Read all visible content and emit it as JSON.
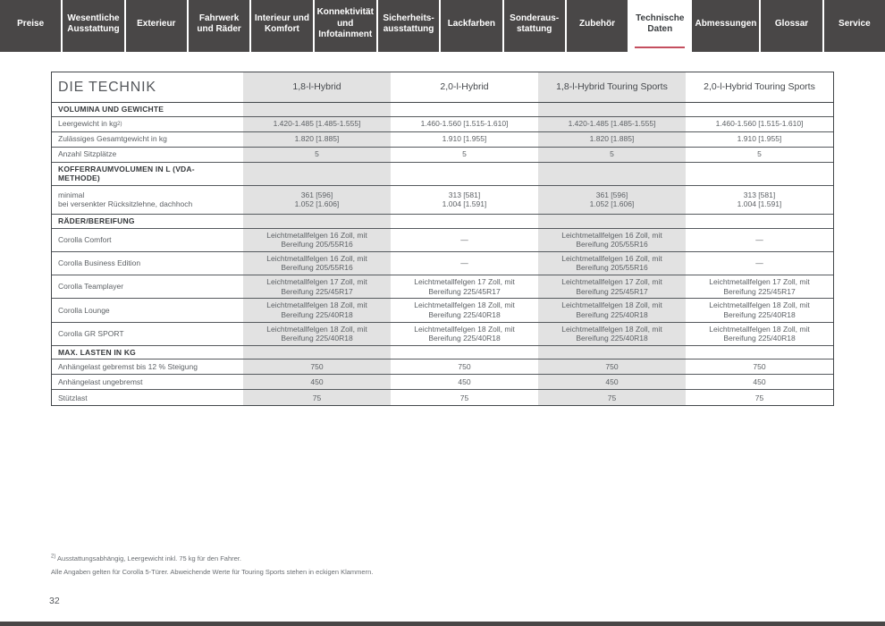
{
  "colors": {
    "accent_red": "#c44f5f",
    "tab_bg": "#494747",
    "band_gray": "#e2e2e2"
  },
  "nav": {
    "tabs": [
      {
        "label": "Preise",
        "active": false
      },
      {
        "label": "Wesentliche Ausstattung",
        "active": false
      },
      {
        "label": "Exterieur",
        "active": false
      },
      {
        "label": "Fahrwerk und Räder",
        "active": false
      },
      {
        "label": "Interieur und Komfort",
        "active": false
      },
      {
        "label": "Konnektivität und Infotainment",
        "active": false
      },
      {
        "label": "Sicherheits­ausstattung",
        "active": false
      },
      {
        "label": "Lackfarben",
        "active": false
      },
      {
        "label": "Sonderaus­stattung",
        "active": false
      },
      {
        "label": "Zubehör",
        "active": false
      },
      {
        "label": "Technische Daten",
        "active": true
      },
      {
        "label": "Abmessungen",
        "active": false
      },
      {
        "label": "Glossar",
        "active": false
      },
      {
        "label": "Service",
        "active": false
      }
    ]
  },
  "table": {
    "title": "DIE TECHNIK",
    "columns": [
      "1,8-l-Hybrid",
      "2,0-l-Hybrid",
      "1,8-l-Hybrid Touring Sports",
      "2,0-l-Hybrid Touring Sports"
    ],
    "rows": [
      {
        "type": "section",
        "label": "VOLUMINA UND GEWICHTE"
      },
      {
        "type": "data",
        "size": "single",
        "label": "Leergewicht in kg",
        "sup": "2)",
        "values": [
          "1.420-1.485 [1.485-1.555]",
          "1.460-1.560 [1.515-1.610]",
          "1.420-1.485 [1.485-1.555]",
          "1.460-1.560 [1.515-1.610]"
        ]
      },
      {
        "type": "data",
        "size": "single",
        "label": "Zulässiges Gesamtgewicht in kg",
        "values": [
          "1.820 [1.885]",
          "1.910 [1.955]",
          "1.820 [1.885]",
          "1.910 [1.955]"
        ]
      },
      {
        "type": "data",
        "size": "single",
        "label": "Anzahl Sitzplätze",
        "values": [
          "5",
          "5",
          "5",
          "5"
        ]
      },
      {
        "type": "section",
        "label": "KOFFERRAUMVOLUMEN IN L (VDA-METHODE)"
      },
      {
        "type": "data",
        "size": "double",
        "label": "minimal\nbei versenkter Rücksitzlehne, dachhoch",
        "values": [
          "361 [596]\n1.052 [1.606]",
          "313 [581]\n1.004 [1.591]",
          "361 [596]\n1.052 [1.606]",
          "313 [581]\n1.004 [1.591]"
        ]
      },
      {
        "type": "section",
        "label": "RÄDER/BEREIFUNG"
      },
      {
        "type": "data",
        "size": "wheel",
        "label": "Corolla Comfort",
        "values": [
          "Leichtmetallfelgen 16 Zoll, mit Bereifung 205/55R16",
          "—",
          "Leichtmetallfelgen 16 Zoll, mit Bereifung 205/55R16",
          "—"
        ]
      },
      {
        "type": "data",
        "size": "wheel",
        "label": "Corolla Business Edition",
        "values": [
          "Leichtmetallfelgen 16 Zoll, mit Bereifung 205/55R16",
          "—",
          "Leichtmetallfelgen 16 Zoll, mit Bereifung 205/55R16",
          "—"
        ]
      },
      {
        "type": "data",
        "size": "wheel",
        "label": "Corolla Teamplayer",
        "values": [
          "Leichtmetallfelgen 17 Zoll, mit Bereifung 225/45R17",
          "Leichtmetallfelgen 17 Zoll, mit Bereifung 225/45R17",
          "Leichtmetallfelgen 17 Zoll, mit Bereifung 225/45R17",
          "Leichtmetallfelgen 17 Zoll, mit Bereifung 225/45R17"
        ]
      },
      {
        "type": "data",
        "size": "wheel",
        "label": "Corolla Lounge",
        "values": [
          "Leichtmetallfelgen 18 Zoll, mit Bereifung 225/40R18",
          "Leichtmetallfelgen 18 Zoll, mit Bereifung 225/40R18",
          "Leichtmetallfelgen 18 Zoll, mit Bereifung 225/40R18",
          "Leichtmetallfelgen 18 Zoll, mit Bereifung 225/40R18"
        ]
      },
      {
        "type": "data",
        "size": "wheel",
        "label": "Corolla GR SPORT",
        "values": [
          "Leichtmetallfelgen 18 Zoll, mit Bereifung 225/40R18",
          "Leichtmetallfelgen 18 Zoll, mit Bereifung 225/40R18",
          "Leichtmetallfelgen 18 Zoll, mit Bereifung 225/40R18",
          "Leichtmetallfelgen 18 Zoll, mit Bereifung 225/40R18"
        ]
      },
      {
        "type": "section",
        "label": "MAX. LASTEN IN KG"
      },
      {
        "type": "data",
        "size": "single",
        "label": "Anhängelast gebremst bis 12 % Steigung",
        "values": [
          "750",
          "750",
          "750",
          "750"
        ]
      },
      {
        "type": "data",
        "size": "single",
        "label": "Anhängelast ungebremst",
        "values": [
          "450",
          "450",
          "450",
          "450"
        ]
      },
      {
        "type": "data",
        "size": "single",
        "label": "Stützlast",
        "values": [
          "75",
          "75",
          "75",
          "75"
        ]
      }
    ]
  },
  "footnotes": [
    {
      "sup": "2)",
      "text": "Ausstattungsabhängig, Leergewicht inkl. 75 kg für den Fahrer."
    },
    {
      "sup": "",
      "text": "Alle Angaben gelten für Corolla 5-Türer. Abweichende Werte für Touring Sports stehen in eckigen Klammern."
    }
  ],
  "page_number": "32"
}
